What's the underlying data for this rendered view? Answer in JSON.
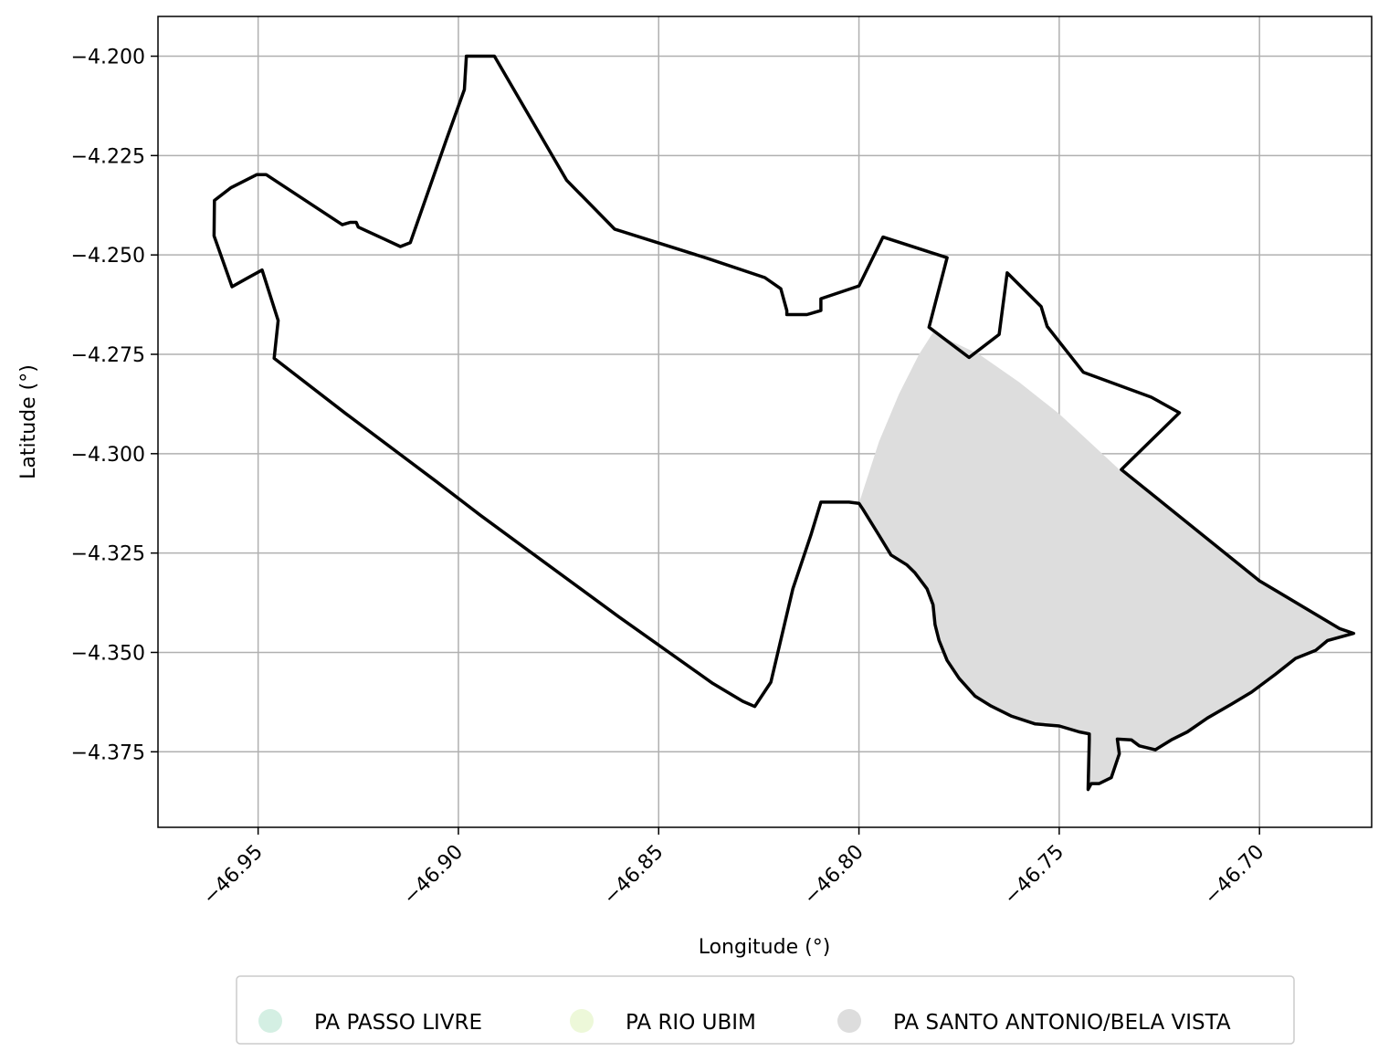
{
  "chart_data": {
    "type": "map",
    "xlabel": "Longitude (°)",
    "ylabel": "Latitude (°)",
    "xlim": [
      -46.975,
      -46.672
    ],
    "ylim": [
      -4.394,
      -4.19
    ],
    "x_ticks": [
      -46.95,
      -46.9,
      -46.85,
      -46.8,
      -46.75,
      -46.7
    ],
    "x_tick_labels": [
      "−46.95",
      "−46.90",
      "−46.85",
      "−46.80",
      "−46.75",
      "−46.70"
    ],
    "y_ticks": [
      -4.2,
      -4.225,
      -4.25,
      -4.275,
      -4.3,
      -4.325,
      -4.35,
      -4.375
    ],
    "y_tick_labels": [
      "−4.200",
      "−4.225",
      "−4.250",
      "−4.275",
      "−4.300",
      "−4.325",
      "−4.350",
      "−4.375"
    ],
    "grid": true,
    "legend_position": "bottom-center",
    "legend": [
      {
        "label": "PA PASSO LIVRE",
        "color": "#d4efe3"
      },
      {
        "label": "PA RIO UBIM",
        "color": "#edf8d9"
      },
      {
        "label": "PA SANTO ANTONIO/BELA VISTA",
        "color": "#dddddd"
      }
    ],
    "filled_region": {
      "name": "PA SANTO ANTONIO/BELA VISTA",
      "color": "#dddddd",
      "polygon": [
        [
          -46.7815,
          -4.2695
        ],
        [
          -46.77,
          -4.275
        ],
        [
          -46.76,
          -4.282
        ],
        [
          -46.75,
          -4.29
        ],
        [
          -46.735,
          -4.304
        ],
        [
          -46.7,
          -4.332
        ],
        [
          -46.68,
          -4.344
        ],
        [
          -46.6765,
          -4.3452
        ],
        [
          -46.683,
          -4.347
        ],
        [
          -46.686,
          -4.3495
        ],
        [
          -46.691,
          -4.3515
        ],
        [
          -46.696,
          -4.3555
        ],
        [
          -46.702,
          -4.36
        ],
        [
          -46.707,
          -4.363
        ],
        [
          -46.713,
          -4.3665
        ],
        [
          -46.718,
          -4.37
        ],
        [
          -46.722,
          -4.372
        ],
        [
          -46.726,
          -4.3745
        ],
        [
          -46.73,
          -4.3735
        ],
        [
          -46.732,
          -4.372
        ],
        [
          -46.7355,
          -4.3718
        ],
        [
          -46.735,
          -4.3755
        ],
        [
          -46.737,
          -4.3815
        ],
        [
          -46.74,
          -4.383
        ],
        [
          -46.742,
          -4.383
        ],
        [
          -46.7428,
          -4.3845
        ],
        [
          -46.7425,
          -4.372
        ],
        [
          -46.7425,
          -4.3705
        ],
        [
          -46.745,
          -4.37
        ],
        [
          -46.75,
          -4.3685
        ],
        [
          -46.756,
          -4.368
        ],
        [
          -46.762,
          -4.366
        ],
        [
          -46.767,
          -4.3635
        ],
        [
          -46.771,
          -4.361
        ],
        [
          -46.775,
          -4.3565
        ],
        [
          -46.778,
          -4.352
        ],
        [
          -46.78,
          -4.347
        ],
        [
          -46.781,
          -4.343
        ],
        [
          -46.7815,
          -4.338
        ],
        [
          -46.783,
          -4.334
        ],
        [
          -46.786,
          -4.33
        ],
        [
          -46.788,
          -4.328
        ],
        [
          -46.792,
          -4.3255
        ],
        [
          -46.795,
          -4.3205
        ],
        [
          -46.799,
          -4.314
        ],
        [
          -46.8,
          -4.3125
        ],
        [
          -46.795,
          -4.297
        ],
        [
          -46.79,
          -4.285
        ],
        [
          -46.785,
          -4.275
        ]
      ]
    },
    "outline": [
      [
        -46.9609,
        -4.2363
      ],
      [
        -46.9568,
        -4.2331
      ],
      [
        -46.9503,
        -4.2298
      ],
      [
        -46.948,
        -4.2298
      ],
      [
        -46.929,
        -4.2424
      ],
      [
        -46.927,
        -4.2418
      ],
      [
        -46.9255,
        -4.2418
      ],
      [
        -46.925,
        -4.243
      ],
      [
        -46.9185,
        -4.246
      ],
      [
        -46.9145,
        -4.2479
      ],
      [
        -46.912,
        -4.2469
      ],
      [
        -46.903,
        -4.221
      ],
      [
        -46.8985,
        -4.2084
      ],
      [
        -46.898,
        -4.2
      ],
      [
        -46.891,
        -4.2
      ],
      [
        -46.873,
        -4.2312
      ],
      [
        -46.861,
        -4.2435
      ],
      [
        -46.838,
        -4.2508
      ],
      [
        -46.8235,
        -4.2557
      ],
      [
        -46.8195,
        -4.2585
      ],
      [
        -46.818,
        -4.264
      ],
      [
        -46.818,
        -4.265
      ],
      [
        -46.813,
        -4.265
      ],
      [
        -46.8095,
        -4.264
      ],
      [
        -46.8095,
        -4.261
      ],
      [
        -46.8,
        -4.2578
      ],
      [
        -46.794,
        -4.2455
      ],
      [
        -46.778,
        -4.2507
      ],
      [
        -46.7825,
        -4.2682
      ],
      [
        -46.7725,
        -4.2758
      ],
      [
        -46.765,
        -4.27
      ],
      [
        -46.763,
        -4.2545
      ],
      [
        -46.7545,
        -4.263
      ],
      [
        -46.753,
        -4.268
      ],
      [
        -46.744,
        -4.2795
      ],
      [
        -46.727,
        -4.2858
      ],
      [
        -46.72,
        -4.2897
      ],
      [
        -46.7345,
        -4.304
      ],
      [
        -46.7,
        -4.332
      ],
      [
        -46.68,
        -4.344
      ],
      [
        -46.6765,
        -4.3452
      ],
      [
        -46.683,
        -4.347
      ],
      [
        -46.686,
        -4.3495
      ],
      [
        -46.691,
        -4.3515
      ],
      [
        -46.696,
        -4.3555
      ],
      [
        -46.702,
        -4.36
      ],
      [
        -46.707,
        -4.363
      ],
      [
        -46.713,
        -4.3665
      ],
      [
        -46.718,
        -4.37
      ],
      [
        -46.722,
        -4.372
      ],
      [
        -46.726,
        -4.3745
      ],
      [
        -46.73,
        -4.3735
      ],
      [
        -46.732,
        -4.372
      ],
      [
        -46.7355,
        -4.3718
      ],
      [
        -46.735,
        -4.3755
      ],
      [
        -46.737,
        -4.3815
      ],
      [
        -46.74,
        -4.383
      ],
      [
        -46.742,
        -4.383
      ],
      [
        -46.7428,
        -4.3845
      ],
      [
        -46.7425,
        -4.372
      ],
      [
        -46.7425,
        -4.3705
      ],
      [
        -46.745,
        -4.37
      ],
      [
        -46.75,
        -4.3685
      ],
      [
        -46.756,
        -4.368
      ],
      [
        -46.762,
        -4.366
      ],
      [
        -46.767,
        -4.3635
      ],
      [
        -46.771,
        -4.361
      ],
      [
        -46.775,
        -4.3565
      ],
      [
        -46.778,
        -4.352
      ],
      [
        -46.78,
        -4.347
      ],
      [
        -46.781,
        -4.343
      ],
      [
        -46.7815,
        -4.338
      ],
      [
        -46.783,
        -4.334
      ],
      [
        -46.786,
        -4.33
      ],
      [
        -46.788,
        -4.328
      ],
      [
        -46.792,
        -4.3255
      ],
      [
        -46.795,
        -4.3205
      ],
      [
        -46.799,
        -4.314
      ],
      [
        -46.8,
        -4.3125
      ],
      [
        -46.8025,
        -4.3122
      ],
      [
        -46.8095,
        -4.3122
      ],
      [
        -46.812,
        -4.3205
      ],
      [
        -46.8165,
        -4.334
      ],
      [
        -46.822,
        -4.3575
      ],
      [
        -46.826,
        -4.3636
      ],
      [
        -46.829,
        -4.3623
      ],
      [
        -46.8365,
        -4.3578
      ],
      [
        -46.86,
        -4.341
      ],
      [
        -46.883,
        -4.324
      ],
      [
        -46.8945,
        -4.3155
      ],
      [
        -46.9055,
        -4.307
      ],
      [
        -46.928,
        -4.29
      ],
      [
        -46.946,
        -4.276
      ],
      [
        -46.945,
        -4.2665
      ],
      [
        -46.949,
        -4.2538
      ],
      [
        -46.953,
        -4.256
      ],
      [
        -46.9565,
        -4.258
      ],
      [
        -46.961,
        -4.2452
      ],
      [
        -46.9609,
        -4.2363
      ]
    ]
  }
}
